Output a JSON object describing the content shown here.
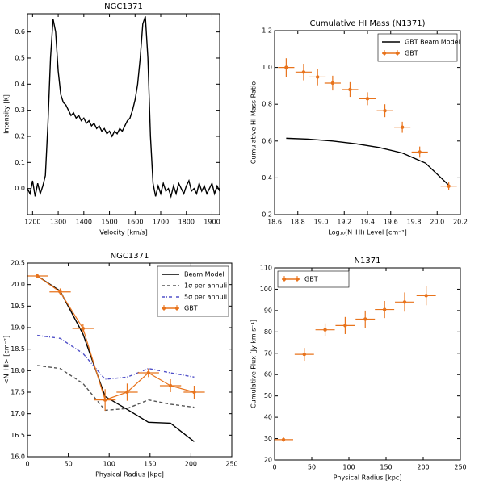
{
  "chart_data": [
    {
      "type": "line",
      "title": "NGC1371",
      "xlabel": "Velocity [km/s]",
      "ylabel": "Intensity [K]",
      "xlim": [
        1180,
        1930
      ],
      "ylim": [
        -0.1,
        0.67
      ],
      "xticks": [
        1200,
        1300,
        1400,
        1500,
        1600,
        1700,
        1800,
        1900
      ],
      "yticks": [
        {
          "value": 0,
          "label": "0.0"
        },
        0.1,
        0.2,
        0.3,
        0.4,
        0.5,
        0.6
      ],
      "series": [
        {
          "name": null,
          "style": "line",
          "color": "#000000",
          "x": [
            1180,
            1190,
            1200,
            1210,
            1220,
            1230,
            1240,
            1250,
            1260,
            1270,
            1280,
            1290,
            1300,
            1310,
            1320,
            1330,
            1340,
            1350,
            1360,
            1370,
            1380,
            1390,
            1400,
            1410,
            1420,
            1430,
            1440,
            1450,
            1460,
            1470,
            1480,
            1490,
            1500,
            1510,
            1520,
            1530,
            1540,
            1550,
            1560,
            1570,
            1580,
            1590,
            1600,
            1610,
            1620,
            1630,
            1640,
            1650,
            1660,
            1670,
            1680,
            1690,
            1700,
            1710,
            1720,
            1730,
            1740,
            1750,
            1760,
            1770,
            1780,
            1790,
            1800,
            1810,
            1820,
            1830,
            1840,
            1850,
            1860,
            1870,
            1880,
            1890,
            1900,
            1910,
            1920,
            1930
          ],
          "values": [
            0,
            -0.02,
            0.03,
            -0.03,
            0.02,
            -0.02,
            0.01,
            0.05,
            0.25,
            0.5,
            0.65,
            0.6,
            0.45,
            0.36,
            0.33,
            0.32,
            0.3,
            0.28,
            0.29,
            0.27,
            0.28,
            0.26,
            0.27,
            0.25,
            0.26,
            0.24,
            0.25,
            0.23,
            0.24,
            0.22,
            0.23,
            0.21,
            0.22,
            0.2,
            0.22,
            0.21,
            0.23,
            0.22,
            0.24,
            0.26,
            0.27,
            0.3,
            0.34,
            0.4,
            0.5,
            0.63,
            0.66,
            0.5,
            0.2,
            0.02,
            -0.03,
            0.01,
            -0.02,
            0.02,
            -0.01,
            0,
            -0.03,
            0.01,
            -0.02,
            0.02,
            0,
            -0.02,
            0.01,
            0.03,
            -0.01,
            0,
            -0.02,
            0.02,
            -0.01,
            0.01,
            -0.02,
            0,
            0.02,
            -0.02,
            0.01,
            -0.01
          ]
        }
      ]
    },
    {
      "type": "errorbar",
      "title": "Cumulative HI Mass (N1371)",
      "xlabel": "Log₁₀(N_HI) Level [cm⁻²]",
      "ylabel": "Cumulative HI Mass Ratio",
      "xlim": [
        18.6,
        20.2
      ],
      "ylim": [
        0.2,
        1.2
      ],
      "xticks": [
        18.6,
        18.8,
        {
          "value": 19,
          "label": "19.0"
        },
        19.2,
        19.4,
        19.6,
        19.8,
        {
          "value": 20,
          "label": "20.0"
        },
        20.2
      ],
      "yticks": [
        0.2,
        0.4,
        0.6,
        0.8,
        {
          "value": 1,
          "label": "1.0"
        },
        1.2
      ],
      "legend": "upper right",
      "series": [
        {
          "name": "GBT Beam Model",
          "style": "line",
          "color": "#000000",
          "x": [
            18.7,
            18.9,
            19.1,
            19.3,
            19.5,
            19.7,
            19.9,
            20.1
          ],
          "values": [
            0.615,
            0.61,
            0.6,
            0.585,
            0.565,
            0.535,
            0.48,
            0.36
          ]
        },
        {
          "name": "GBT",
          "style": "errorbar",
          "color": "#e8731c",
          "x": [
            18.7,
            18.85,
            18.97,
            19.1,
            19.25,
            19.4,
            19.55,
            19.7,
            19.85,
            20.1
          ],
          "values": [
            1.0,
            0.975,
            0.948,
            0.915,
            0.88,
            0.83,
            0.765,
            0.675,
            0.54,
            0.355
          ],
          "xerr": [
            0.07,
            0.07,
            0.07,
            0.07,
            0.07,
            0.07,
            0.07,
            0.07,
            0.07,
            0.07
          ],
          "yerr": [
            0.05,
            0.045,
            0.045,
            0.04,
            0.04,
            0.035,
            0.035,
            0.03,
            0.03,
            0.02
          ]
        }
      ]
    },
    {
      "type": "errorbar",
      "title": "NGC1371",
      "xlabel": "Physical Radius [kpc]",
      "ylabel": "<N_HI> [cm⁻²]",
      "xlim": [
        0,
        250
      ],
      "ylim": [
        16,
        20.5
      ],
      "xticks": [
        0,
        50,
        100,
        150,
        200,
        250
      ],
      "yticks": [
        {
          "value": 16,
          "label": "16.0"
        },
        16.5,
        {
          "value": 17,
          "label": "17.0"
        },
        17.5,
        {
          "value": 18,
          "label": "18.0"
        },
        18.5,
        {
          "value": 19,
          "label": "19.0"
        },
        19.5,
        {
          "value": 20,
          "label": "20.0"
        },
        20.5
      ],
      "legend": "upper right",
      "series": [
        {
          "name": "Beam Model",
          "style": "line",
          "color": "#000000",
          "x": [
            12,
            40,
            68,
            95,
            122,
            148,
            175,
            204
          ],
          "values": [
            20.2,
            19.85,
            18.85,
            17.4,
            17.1,
            16.8,
            16.78,
            16.35
          ]
        },
        {
          "name": "1σ per annuli",
          "style": "dashed",
          "color": "#555555",
          "x": [
            12,
            40,
            68,
            95,
            122,
            148,
            175,
            204
          ],
          "values": [
            18.12,
            18.05,
            17.7,
            17.08,
            17.12,
            17.32,
            17.22,
            17.15
          ]
        },
        {
          "name": "5σ per annuli",
          "style": "dashdot",
          "color": "#5050c8",
          "x": [
            12,
            40,
            68,
            95,
            122,
            148,
            175,
            204
          ],
          "values": [
            18.82,
            18.75,
            18.4,
            17.8,
            17.85,
            18.05,
            17.95,
            17.85
          ]
        },
        {
          "name": "GBT",
          "style": "errorbar",
          "color": "#e8731c",
          "joined": true,
          "x": [
            12,
            40,
            68,
            95,
            122,
            148,
            175,
            204
          ],
          "values": [
            20.2,
            19.83,
            18.98,
            17.32,
            17.5,
            17.95,
            17.65,
            17.5
          ],
          "xerr": [
            13,
            13,
            13,
            13,
            13,
            13,
            13,
            13
          ],
          "yerr": [
            0.05,
            0.08,
            0.1,
            0.25,
            0.2,
            0.1,
            0.15,
            0.15
          ]
        }
      ]
    },
    {
      "type": "errorbar",
      "title": "N1371",
      "xlabel": "Physical Radius [kpc]",
      "ylabel": "Cumulative Flux [Jy km s⁻¹]",
      "xlim": [
        0,
        250
      ],
      "ylim": [
        20,
        110
      ],
      "xticks": [
        0,
        50,
        100,
        150,
        200,
        250
      ],
      "yticks": [
        20,
        30,
        40,
        50,
        60,
        70,
        80,
        90,
        100,
        110
      ],
      "legend": "upper left",
      "series": [
        {
          "name": "GBT",
          "style": "errorbar",
          "color": "#e8731c",
          "x": [
            12,
            40,
            68,
            95,
            122,
            148,
            175,
            204
          ],
          "values": [
            29.5,
            69.5,
            81,
            83,
            86,
            90.5,
            94,
            97
          ],
          "xerr": [
            13,
            13,
            13,
            13,
            13,
            13,
            13,
            13
          ],
          "yerr": [
            1,
            3,
            3,
            4,
            4,
            4,
            4.5,
            4.5
          ]
        }
      ]
    }
  ]
}
